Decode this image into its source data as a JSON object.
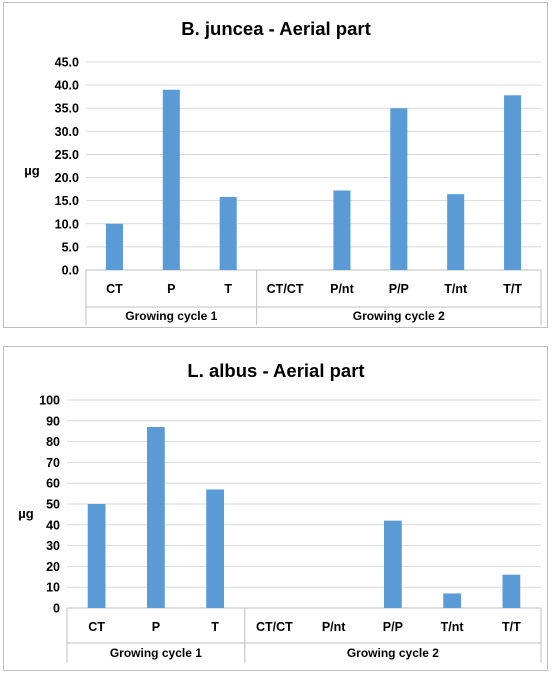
{
  "chart_data": [
    {
      "type": "bar",
      "title": "B. juncea - Aerial part",
      "ylabel": "µg",
      "xlabel": "",
      "categories": [
        "CT",
        "P",
        "T",
        "CT/CT",
        "P/nt",
        "P/P",
        "T/nt",
        "T/T"
      ],
      "groups": [
        {
          "label": "Growing cycle 1",
          "categories": [
            "CT",
            "P",
            "T"
          ]
        },
        {
          "label": "Growing cycle 2",
          "categories": [
            "CT/CT",
            "P/nt",
            "P/P",
            "T/nt",
            "T/T"
          ]
        }
      ],
      "values": [
        10.0,
        39.0,
        15.8,
        0,
        17.2,
        35.0,
        16.4,
        37.8
      ],
      "ylim": [
        0,
        45
      ],
      "yticks": [
        "0.0",
        "5.0",
        "10.0",
        "15.0",
        "20.0",
        "25.0",
        "30.0",
        "35.0",
        "40.0",
        "45.0"
      ],
      "grid": true,
      "legend": "none",
      "bar_color": "#5b9bd5"
    },
    {
      "type": "bar",
      "title": "L. albus - Aerial part",
      "ylabel": "µg",
      "xlabel": "",
      "categories": [
        "CT",
        "P",
        "T",
        "CT/CT",
        "P/nt",
        "P/P",
        "T/nt",
        "T/T"
      ],
      "groups": [
        {
          "label": "Growing cycle 1",
          "categories": [
            "CT",
            "P",
            "T"
          ]
        },
        {
          "label": "Growing cycle 2",
          "categories": [
            "CT/CT",
            "P/nt",
            "P/P",
            "T/nt",
            "T/T"
          ]
        }
      ],
      "values": [
        50,
        87,
        57,
        0,
        0,
        42,
        7,
        16
      ],
      "ylim": [
        0,
        100
      ],
      "yticks": [
        "0",
        "10",
        "20",
        "30",
        "40",
        "50",
        "60",
        "70",
        "80",
        "90",
        "100"
      ],
      "grid": true,
      "legend": "none",
      "bar_color": "#5b9bd5"
    }
  ]
}
